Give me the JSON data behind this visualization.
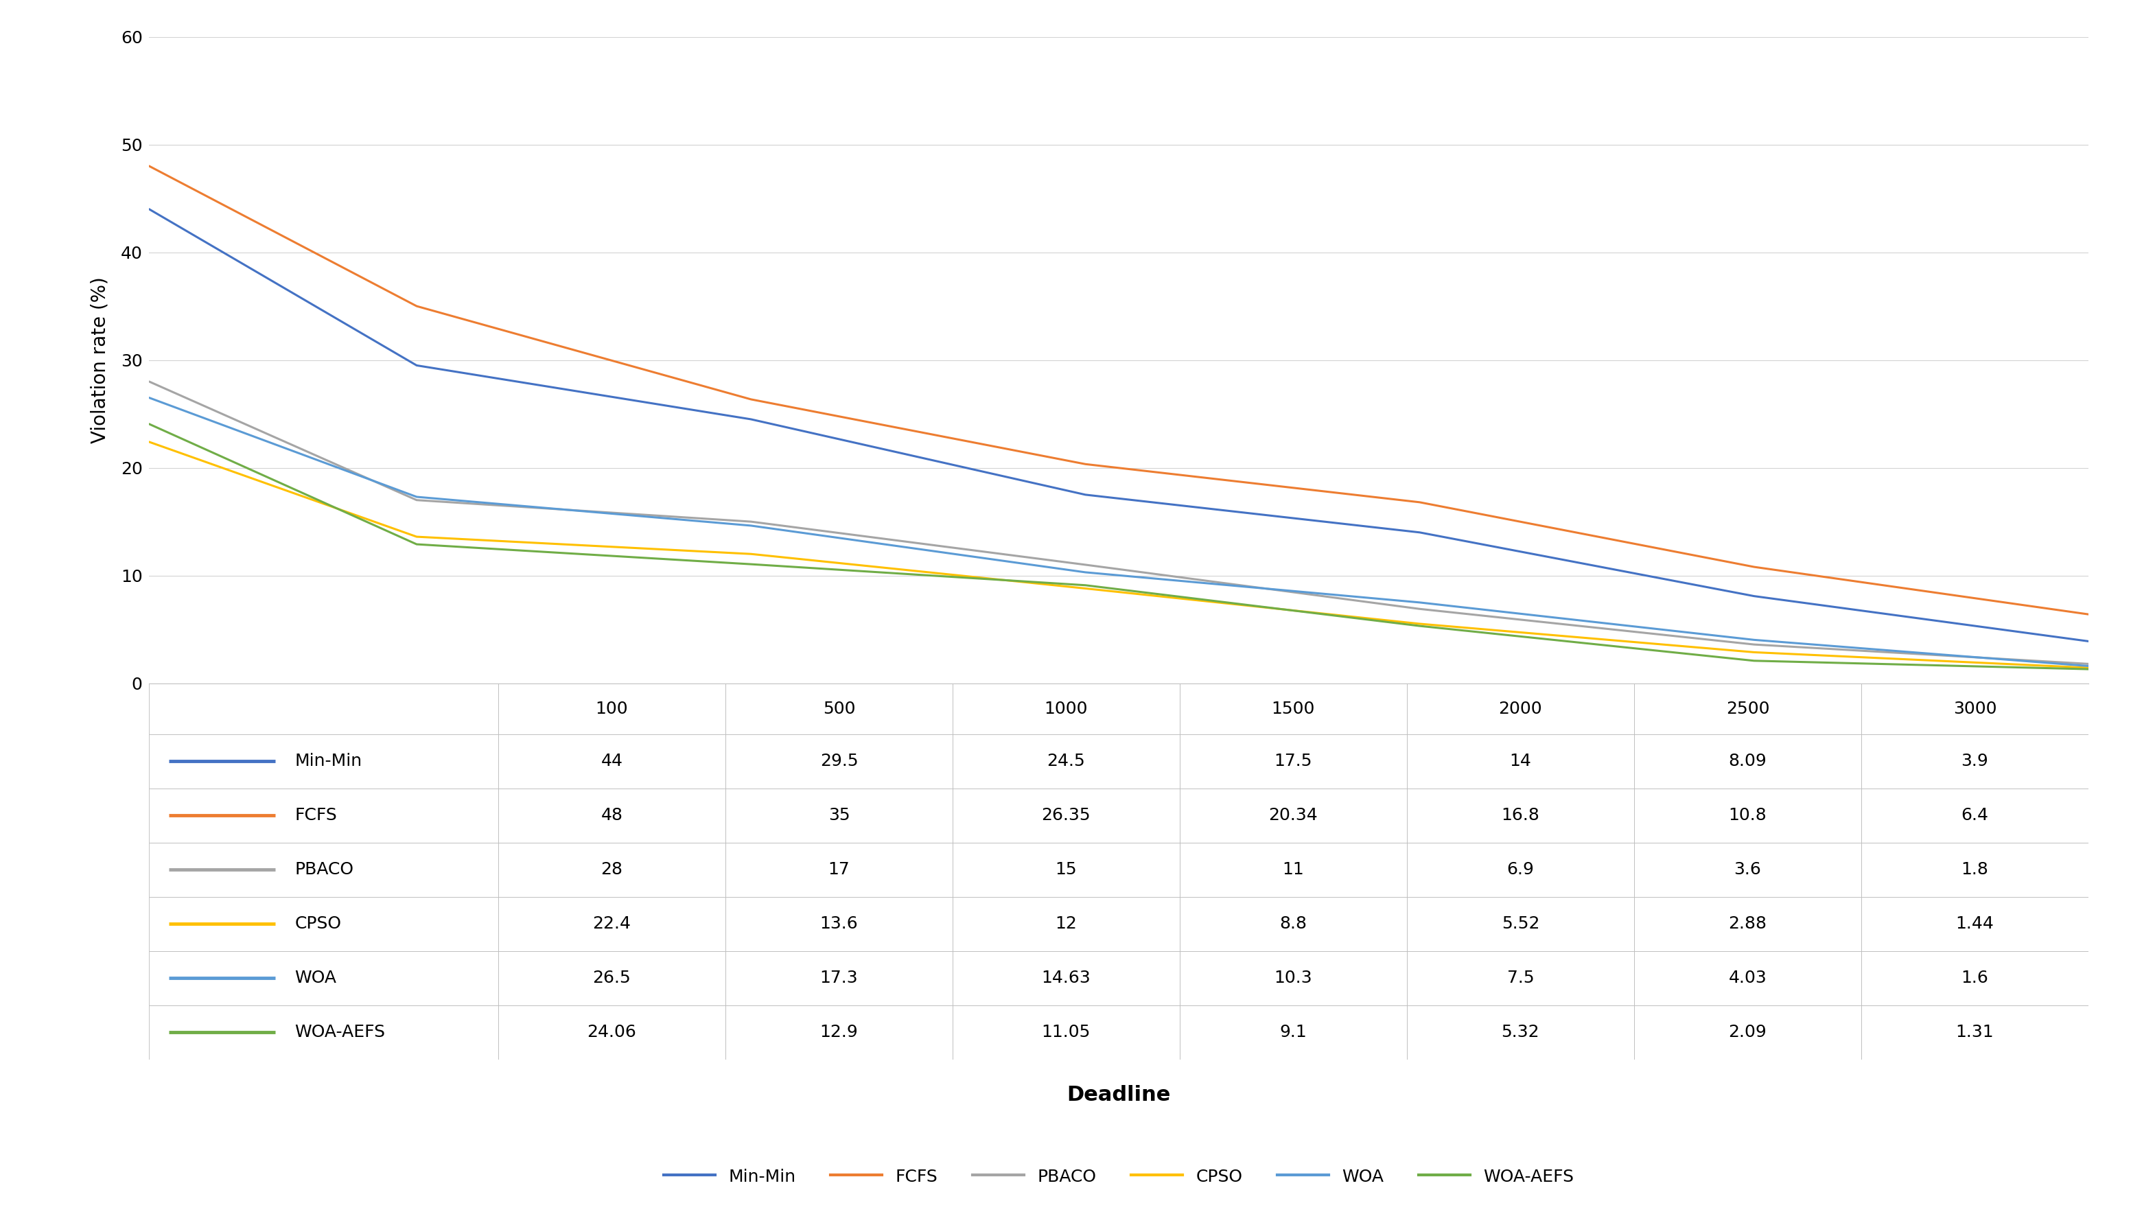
{
  "x": [
    100,
    500,
    1000,
    1500,
    2000,
    2500,
    3000
  ],
  "series_order": [
    "Min-Min",
    "FCFS",
    "PBACO",
    "CPSO",
    "WOA",
    "WOA-AEFS"
  ],
  "series": {
    "Min-Min": {
      "values": [
        44,
        29.5,
        24.5,
        17.5,
        14,
        8.09,
        3.9
      ],
      "color": "#4472C4"
    },
    "FCFS": {
      "values": [
        48,
        35,
        26.35,
        20.34,
        16.8,
        10.8,
        6.4
      ],
      "color": "#ED7D31"
    },
    "PBACO": {
      "values": [
        28,
        17,
        15,
        11,
        6.9,
        3.6,
        1.8
      ],
      "color": "#A5A5A5"
    },
    "CPSO": {
      "values": [
        22.4,
        13.6,
        12,
        8.8,
        5.52,
        2.88,
        1.44
      ],
      "color": "#FFC000"
    },
    "WOA": {
      "values": [
        26.5,
        17.3,
        14.63,
        10.3,
        7.5,
        4.03,
        1.6
      ],
      "color": "#5B9BD5"
    },
    "WOA-AEFS": {
      "values": [
        24.06,
        12.9,
        11.05,
        9.1,
        5.32,
        2.09,
        1.31
      ],
      "color": "#70AD47"
    }
  },
  "table_col_labels": [
    "100",
    "500",
    "1000",
    "1500",
    "2000",
    "2500",
    "3000"
  ],
  "table_rows": {
    "Min-Min": [
      "44",
      "29.5",
      "24.5",
      "17.5",
      "14",
      "8.09",
      "3.9"
    ],
    "FCFS": [
      "48",
      "35",
      "26.35",
      "20.34",
      "16.8",
      "10.8",
      "6.4"
    ],
    "PBACO": [
      "28",
      "17",
      "15",
      "11",
      "6.9",
      "3.6",
      "1.8"
    ],
    "CPSO": [
      "22.4",
      "13.6",
      "12",
      "8.8",
      "5.52",
      "2.88",
      "1.44"
    ],
    "WOA": [
      "26.5",
      "17.3",
      "14.63",
      "10.3",
      "7.5",
      "4.03",
      "1.6"
    ],
    "WOA-AEFS": [
      "24.06",
      "12.9",
      "11.05",
      "9.1",
      "5.32",
      "2.09",
      "1.31"
    ]
  },
  "xlabel": "Deadline",
  "ylabel": "Violation rate (%)",
  "ylim": [
    0,
    60
  ],
  "yticks": [
    0,
    10,
    20,
    30,
    40,
    50,
    60
  ],
  "linewidth": 2.2,
  "background_color": "#FFFFFF",
  "grid_color": "#D3D3D3",
  "table_font_size": 18,
  "axis_font_size": 20,
  "legend_font_size": 18,
  "tick_font_size": 18
}
